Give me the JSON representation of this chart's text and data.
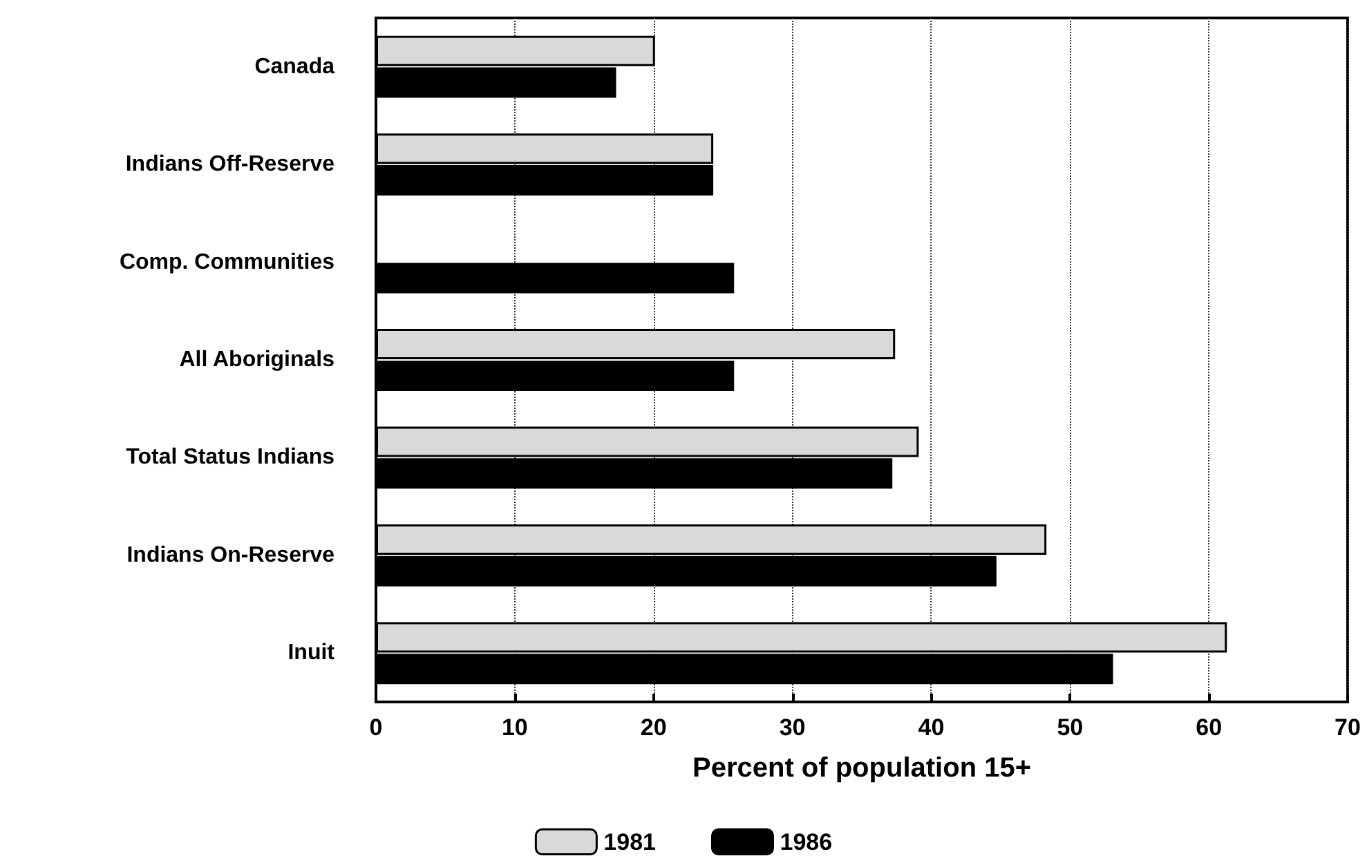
{
  "chart_data": {
    "type": "bar",
    "orientation": "horizontal",
    "xlabel": "Percent of population 15+",
    "categories": [
      "Canada",
      "Indians Off-Reserve",
      "Comp. Communities",
      "All Aboriginals",
      "Total Status Indians",
      "Indians On-Reserve",
      "Inuit"
    ],
    "series": [
      {
        "name": "1981",
        "color": "#d9d9d9",
        "values": [
          20.1,
          24.3,
          null,
          37.4,
          39.1,
          48.3,
          61.3
        ]
      },
      {
        "name": "1986",
        "color": "#000000",
        "values": [
          17.3,
          24.3,
          25.8,
          25.8,
          37.2,
          44.7,
          53.1
        ]
      }
    ],
    "xlim": [
      0,
      70
    ],
    "xticks": [
      0,
      10,
      20,
      30,
      40,
      50,
      60,
      70
    ],
    "grid": "x",
    "legend": "bottom"
  }
}
